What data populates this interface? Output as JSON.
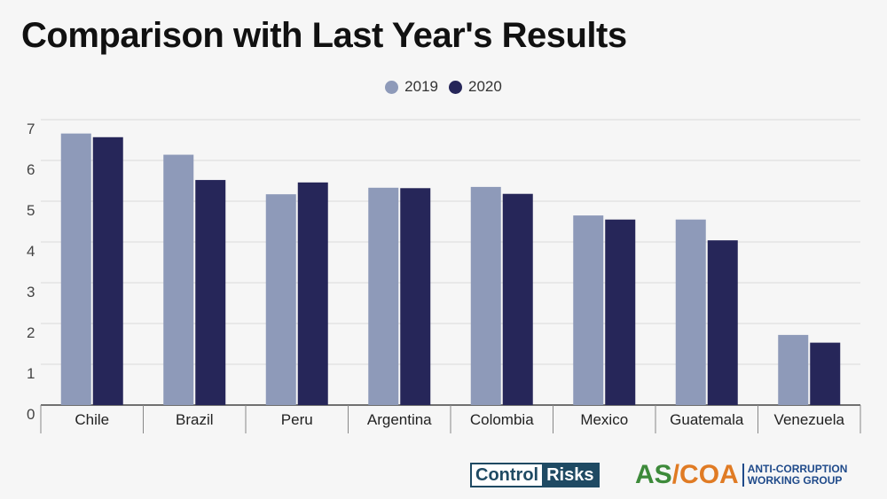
{
  "colors": {
    "2019": "#8e9ab9",
    "2020": "#262659"
  },
  "logos": {
    "control_risks": {
      "part1": "Control",
      "part2": "Risks"
    },
    "ascoa": {
      "as": "AS",
      "slash": "/",
      "coa": "COA",
      "sub1": "ANTI-CORRUPTION",
      "sub2": "WORKING GROUP"
    }
  },
  "chart_data": {
    "type": "bar",
    "title": "Comparison with Last Year's Results",
    "xlabel": "",
    "ylabel": "",
    "categories": [
      "Chile",
      "Brazil",
      "Peru",
      "Argentina",
      "Colombia",
      "Mexico",
      "Guatemala",
      "Venezuela"
    ],
    "series": [
      {
        "name": "2019",
        "values": [
          6.66,
          6.14,
          5.17,
          5.33,
          5.35,
          4.65,
          4.55,
          1.72
        ]
      },
      {
        "name": "2020",
        "values": [
          6.57,
          5.52,
          5.46,
          5.32,
          5.18,
          4.55,
          4.04,
          1.53
        ]
      }
    ],
    "ylim": [
      0,
      7
    ],
    "yticks": [
      "0",
      "1",
      "2",
      "3",
      "4",
      "5",
      "6",
      "7"
    ],
    "grid": true,
    "legend_position": "top-center"
  }
}
